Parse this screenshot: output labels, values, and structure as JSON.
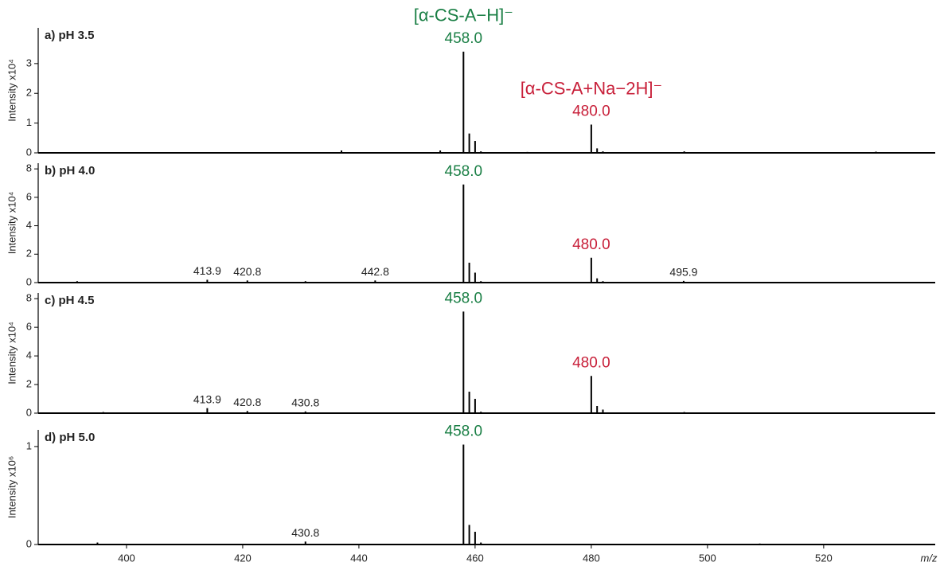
{
  "chart_data": [
    {
      "type": "stem",
      "title": "a) pH 3.5",
      "ylabel": "Intensity x10⁴",
      "xlim": [
        384.8,
        539.2
      ],
      "ylim": [
        0,
        4.2
      ],
      "yticks": [
        0,
        1,
        2,
        3
      ],
      "series": [
        {
          "color": "#000000",
          "x": [
            437,
            454,
            458,
            459,
            460,
            461,
            469,
            480,
            481,
            482,
            496,
            529
          ],
          "values": [
            0.08,
            0.08,
            3.4,
            0.65,
            0.4,
            0.05,
            0.03,
            0.95,
            0.15,
            0.05,
            0.05,
            0.04
          ]
        }
      ],
      "peak_labels": [
        {
          "value": 458.0,
          "label": "458.0",
          "color": "#1a7f45",
          "annotation": "[α-CS-A−H]⁻"
        },
        {
          "value": 480.0,
          "label": "480.0",
          "color": "#c8203a",
          "annotation": "[α-CS-A+Na−2H]⁻"
        }
      ]
    },
    {
      "type": "stem",
      "title": "b) pH 4.0",
      "ylabel": "Intensity x10⁴",
      "xlim": [
        384.8,
        539.2
      ],
      "ylim": [
        0,
        8.4
      ],
      "yticks": [
        0,
        2,
        4,
        6,
        8
      ],
      "series": [
        {
          "color": "#000000",
          "x": [
            391.5,
            413.9,
            420.8,
            430.8,
            442.8,
            444.5,
            458,
            459,
            460,
            461,
            480,
            481,
            482,
            495.9
          ],
          "values": [
            0.1,
            0.2,
            0.15,
            0.1,
            0.15,
            0.05,
            6.9,
            1.4,
            0.7,
            0.1,
            1.75,
            0.3,
            0.1,
            0.12
          ]
        }
      ],
      "peak_labels": [
        {
          "value": 413.9,
          "label": "413.9"
        },
        {
          "value": 420.8,
          "label": "420.8"
        },
        {
          "value": 442.8,
          "label": "442.8"
        },
        {
          "value": 458.0,
          "label": "458.0",
          "color": "#1a7f45"
        },
        {
          "value": 480.0,
          "label": "480.0",
          "color": "#c8203a"
        },
        {
          "value": 495.9,
          "label": "495.9"
        }
      ]
    },
    {
      "type": "stem",
      "title": "c) pH 4.5",
      "ylabel": "Intensity x10⁴",
      "xlim": [
        384.8,
        539.2
      ],
      "ylim": [
        0,
        8.4
      ],
      "yticks": [
        0,
        2,
        4,
        6,
        8
      ],
      "series": [
        {
          "color": "#000000",
          "x": [
            396,
            413.9,
            420.8,
            430.8,
            446,
            458,
            459,
            460,
            461,
            480,
            481,
            482,
            492,
            496
          ],
          "values": [
            0.08,
            0.35,
            0.15,
            0.12,
            0.05,
            7.1,
            1.5,
            1.0,
            0.1,
            2.6,
            0.5,
            0.25,
            0.05,
            0.08
          ]
        }
      ],
      "peak_labels": [
        {
          "value": 413.9,
          "label": "413.9"
        },
        {
          "value": 420.8,
          "label": "420.8"
        },
        {
          "value": 430.8,
          "label": "430.8"
        },
        {
          "value": 458.0,
          "label": "458.0",
          "color": "#1a7f45"
        },
        {
          "value": 480.0,
          "label": "480.0",
          "color": "#c8203a"
        }
      ]
    },
    {
      "type": "stem",
      "title": "d) pH 5.0",
      "ylabel": "Intensity x10⁶",
      "xlabel": "m/z",
      "xlim": [
        384.8,
        539.2
      ],
      "ylim": [
        0,
        1.17
      ],
      "yticks": [
        0,
        1
      ],
      "xticks": [
        400,
        420,
        440,
        460,
        480,
        500,
        520
      ],
      "series": [
        {
          "color": "#000000",
          "x": [
            395,
            430.8,
            458,
            459,
            460,
            461,
            509
          ],
          "values": [
            0.02,
            0.03,
            1.02,
            0.2,
            0.13,
            0.02,
            0.01
          ]
        }
      ],
      "peak_labels": [
        {
          "value": 430.8,
          "label": "430.8"
        },
        {
          "value": 458.0,
          "label": "458.0",
          "color": "#1a7f45"
        }
      ]
    }
  ]
}
